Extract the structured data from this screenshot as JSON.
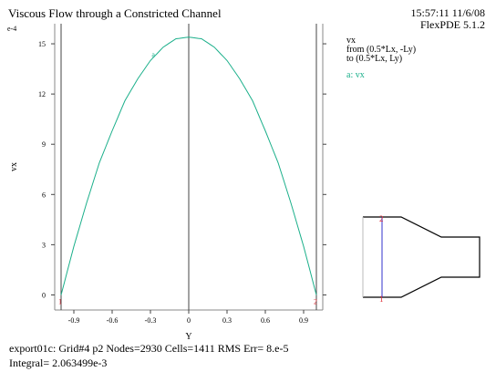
{
  "header": {
    "title": "Viscous Flow through a Constricted Channel",
    "timestamp": "15:57:11 11/6/08",
    "version": "FlexPDE 5.1.2"
  },
  "legend": {
    "variable": "vx",
    "from": "from (0.5*Lx, -Ly)",
    "to": "to (0.5*Lx, Ly)",
    "series_label": "a: vx"
  },
  "footer": {
    "line1": "export01c:  Grid#4  p2  Nodes=2930 Cells=1411 RMS Err= 8.e-5",
    "line2": "Integral=  2.063499e-3"
  },
  "chart_data": {
    "type": "line",
    "xlabel": "Y",
    "ylabel": "vx",
    "y_scale_note": "e-4",
    "xlim": [
      -1.05,
      1.05
    ],
    "ylim": [
      -0.9,
      16.2
    ],
    "x_ticks": [
      -0.9,
      -0.6,
      -0.3,
      0,
      0.3,
      0.6,
      0.9
    ],
    "y_ticks": [
      0,
      3,
      6,
      9,
      12,
      15
    ],
    "vertical_lines": [
      -1.0,
      0,
      1.0
    ],
    "series": [
      {
        "name": "a",
        "color": "#1aaf8a",
        "x": [
          -1.0,
          -0.9,
          -0.8,
          -0.7,
          -0.6,
          -0.5,
          -0.4,
          -0.3,
          -0.2,
          -0.1,
          0,
          0.1,
          0.2,
          0.3,
          0.4,
          0.5,
          0.6,
          0.7,
          0.8,
          0.9,
          1.0
        ],
        "y": [
          0.0,
          2.9,
          5.5,
          7.9,
          9.8,
          11.6,
          12.9,
          14.0,
          14.8,
          15.3,
          15.4,
          15.3,
          14.8,
          14.0,
          12.9,
          11.6,
          9.8,
          7.9,
          5.5,
          2.9,
          0.0
        ]
      }
    ],
    "point_markers": [
      {
        "label": "1",
        "x": -1.0,
        "y": 0.0
      },
      {
        "label": "2",
        "x": 1.0,
        "y": 0.0
      }
    ]
  },
  "inset": {
    "label_start": "1",
    "label_end": "2",
    "cut_color": "#3333cc",
    "marker_color": "#e0303a"
  }
}
